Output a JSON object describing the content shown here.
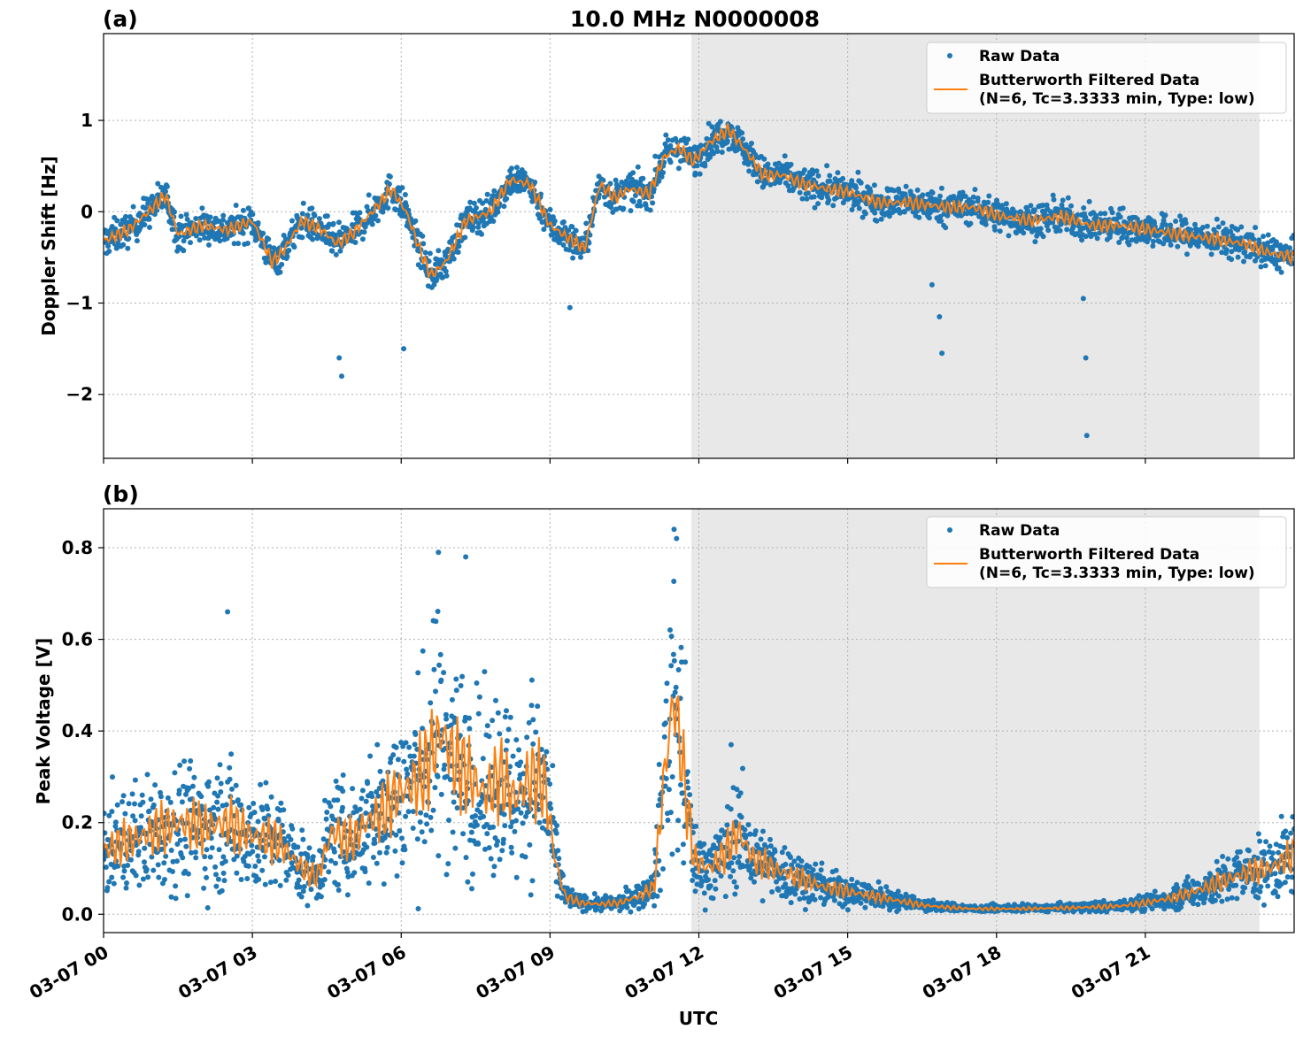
{
  "title": "10.0 MHz N0000008",
  "xlabel": "UTC",
  "x_tick_labels": [
    "03-07 00",
    "03-07 03",
    "03-07 06",
    "03-07 09",
    "03-07 12",
    "03-07 15",
    "03-07 18",
    "03-07 21"
  ],
  "x_ticks_hours": [
    0,
    3,
    6,
    9,
    12,
    15,
    18,
    21
  ],
  "x_range_hours": [
    0,
    24
  ],
  "shaded_range_hours": [
    11.85,
    23.3
  ],
  "colors": {
    "raw": "#1f77b4",
    "filtered": "#ff7f0e",
    "shade": "#e8e8e8"
  },
  "legend": {
    "raw_label": "Raw Data",
    "filtered_label_line1": "Butterworth Filtered Data",
    "filtered_label_line2": "(N=6, Tc=3.3333 min, Type: low)",
    "location": "upper right"
  },
  "chart_data": [
    {
      "panel_label": "(a)",
      "type": "scatter+line",
      "ylabel": "Doppler Shift [Hz]",
      "ylim": [
        -2.7,
        1.95
      ],
      "y_ticks": [
        -2,
        -1,
        0,
        1
      ],
      "y_tick_labels": [
        "−2",
        "−1",
        "0",
        "1"
      ],
      "grid": true,
      "series": [
        {
          "name": "Butterworth Filtered Data",
          "x_hours": [
            0,
            0.5,
            1.0,
            1.25,
            1.5,
            2.0,
            2.5,
            3.0,
            3.4,
            3.6,
            4.0,
            4.4,
            4.7,
            5.0,
            5.5,
            5.8,
            6.1,
            6.4,
            6.6,
            6.9,
            7.3,
            7.8,
            8.2,
            8.6,
            9.0,
            9.4,
            9.7,
            10.0,
            10.3,
            10.6,
            11.0,
            11.3,
            11.6,
            11.9,
            12.2,
            12.6,
            12.9,
            13.3,
            13.7,
            14.1,
            14.6,
            15.1,
            15.6,
            16.2,
            17.0,
            17.5,
            18.1,
            18.7,
            19.3,
            19.9,
            20.5,
            21.1,
            21.7,
            22.4,
            23.0,
            23.5,
            23.99
          ],
          "values": [
            -0.32,
            -0.2,
            0.05,
            0.18,
            -0.25,
            -0.15,
            -0.2,
            -0.1,
            -0.55,
            -0.45,
            -0.1,
            -0.2,
            -0.35,
            -0.25,
            0.05,
            0.25,
            0.0,
            -0.45,
            -0.7,
            -0.55,
            -0.1,
            0.0,
            0.35,
            0.3,
            -0.15,
            -0.3,
            -0.4,
            0.3,
            0.15,
            0.25,
            0.2,
            0.6,
            0.7,
            0.55,
            0.75,
            0.9,
            0.7,
            0.4,
            0.4,
            0.3,
            0.25,
            0.2,
            0.1,
            0.1,
            0.05,
            0.05,
            -0.05,
            -0.1,
            -0.05,
            -0.15,
            -0.15,
            -0.2,
            -0.25,
            -0.3,
            -0.35,
            -0.45,
            -0.5
          ]
        },
        {
          "name": "Raw Data",
          "spread": 0.22,
          "outliers_x_hours": [
            4.75,
            4.8,
            6.05,
            9.4,
            16.7,
            16.85,
            16.9,
            19.75,
            19.8,
            19.82
          ],
          "outliers_values": [
            -1.6,
            -1.8,
            -1.5,
            -1.05,
            -0.8,
            -1.15,
            -1.55,
            -0.95,
            -1.6,
            -2.45
          ]
        }
      ]
    },
    {
      "panel_label": "(b)",
      "type": "scatter+line",
      "ylabel": "Peak Voltage [V]",
      "ylim": [
        -0.04,
        0.885
      ],
      "y_ticks": [
        0.0,
        0.2,
        0.4,
        0.6,
        0.8
      ],
      "y_tick_labels": [
        "0.0",
        "0.2",
        "0.4",
        "0.6",
        "0.8"
      ],
      "grid": true,
      "series": [
        {
          "name": "Butterworth Filtered Data",
          "x_hours": [
            0,
            0.5,
            1.0,
            1.5,
            2.0,
            2.5,
            3.0,
            3.5,
            4.0,
            4.3,
            4.6,
            5.0,
            5.3,
            5.6,
            5.9,
            6.2,
            6.5,
            6.8,
            7.1,
            7.4,
            7.7,
            8.0,
            8.3,
            8.6,
            8.9,
            9.1,
            9.3,
            9.6,
            10.0,
            10.4,
            10.8,
            11.1,
            11.3,
            11.5,
            11.7,
            11.9,
            12.2,
            12.5,
            12.8,
            13.1,
            13.5,
            14.0,
            14.5,
            15.0,
            15.5,
            16.0,
            16.5,
            17.0,
            17.5,
            18.0,
            18.5,
            19.0,
            19.5,
            20.0,
            20.5,
            21.0,
            21.5,
            22.0,
            22.5,
            23.0,
            23.5,
            23.99
          ],
          "values": [
            0.14,
            0.16,
            0.18,
            0.2,
            0.19,
            0.2,
            0.17,
            0.16,
            0.1,
            0.08,
            0.18,
            0.16,
            0.2,
            0.22,
            0.26,
            0.28,
            0.32,
            0.4,
            0.33,
            0.3,
            0.26,
            0.3,
            0.25,
            0.3,
            0.28,
            0.12,
            0.04,
            0.025,
            0.022,
            0.025,
            0.04,
            0.06,
            0.3,
            0.48,
            0.3,
            0.12,
            0.1,
            0.13,
            0.18,
            0.12,
            0.1,
            0.08,
            0.06,
            0.05,
            0.04,
            0.03,
            0.02,
            0.015,
            0.012,
            0.012,
            0.012,
            0.013,
            0.014,
            0.016,
            0.018,
            0.025,
            0.035,
            0.05,
            0.07,
            0.09,
            0.1,
            0.13
          ]
        },
        {
          "name": "Raw Data",
          "spread_fraction": 0.75,
          "notable_peaks_x_hours": [
            2.5,
            6.75,
            7.3,
            11.5,
            11.55,
            12.65
          ],
          "notable_peaks_values": [
            0.66,
            0.79,
            0.78,
            0.84,
            0.82,
            0.37
          ]
        }
      ]
    }
  ]
}
